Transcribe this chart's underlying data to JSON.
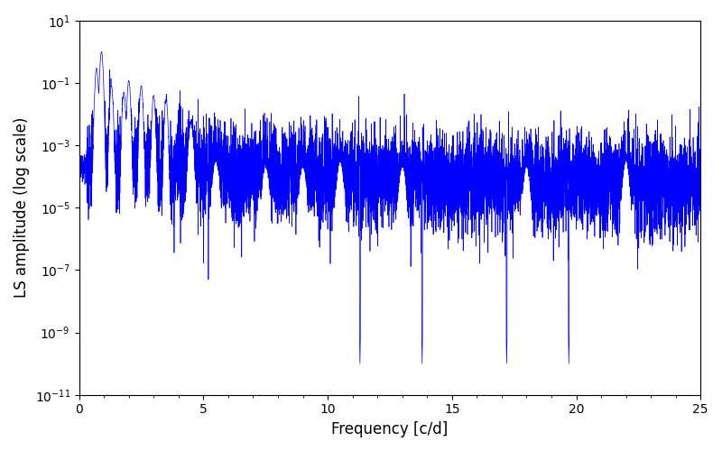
{
  "xlabel": "Frequency [c/d]",
  "ylabel": "LS amplitude (log scale)",
  "xlim": [
    0,
    25
  ],
  "ylim": [
    1e-11,
    10
  ],
  "line_color": "#0000FF",
  "line_width": 0.5,
  "background_color": "#ffffff",
  "seed": 12345,
  "n_points": 8000,
  "freq_max": 25.0,
  "title": ""
}
